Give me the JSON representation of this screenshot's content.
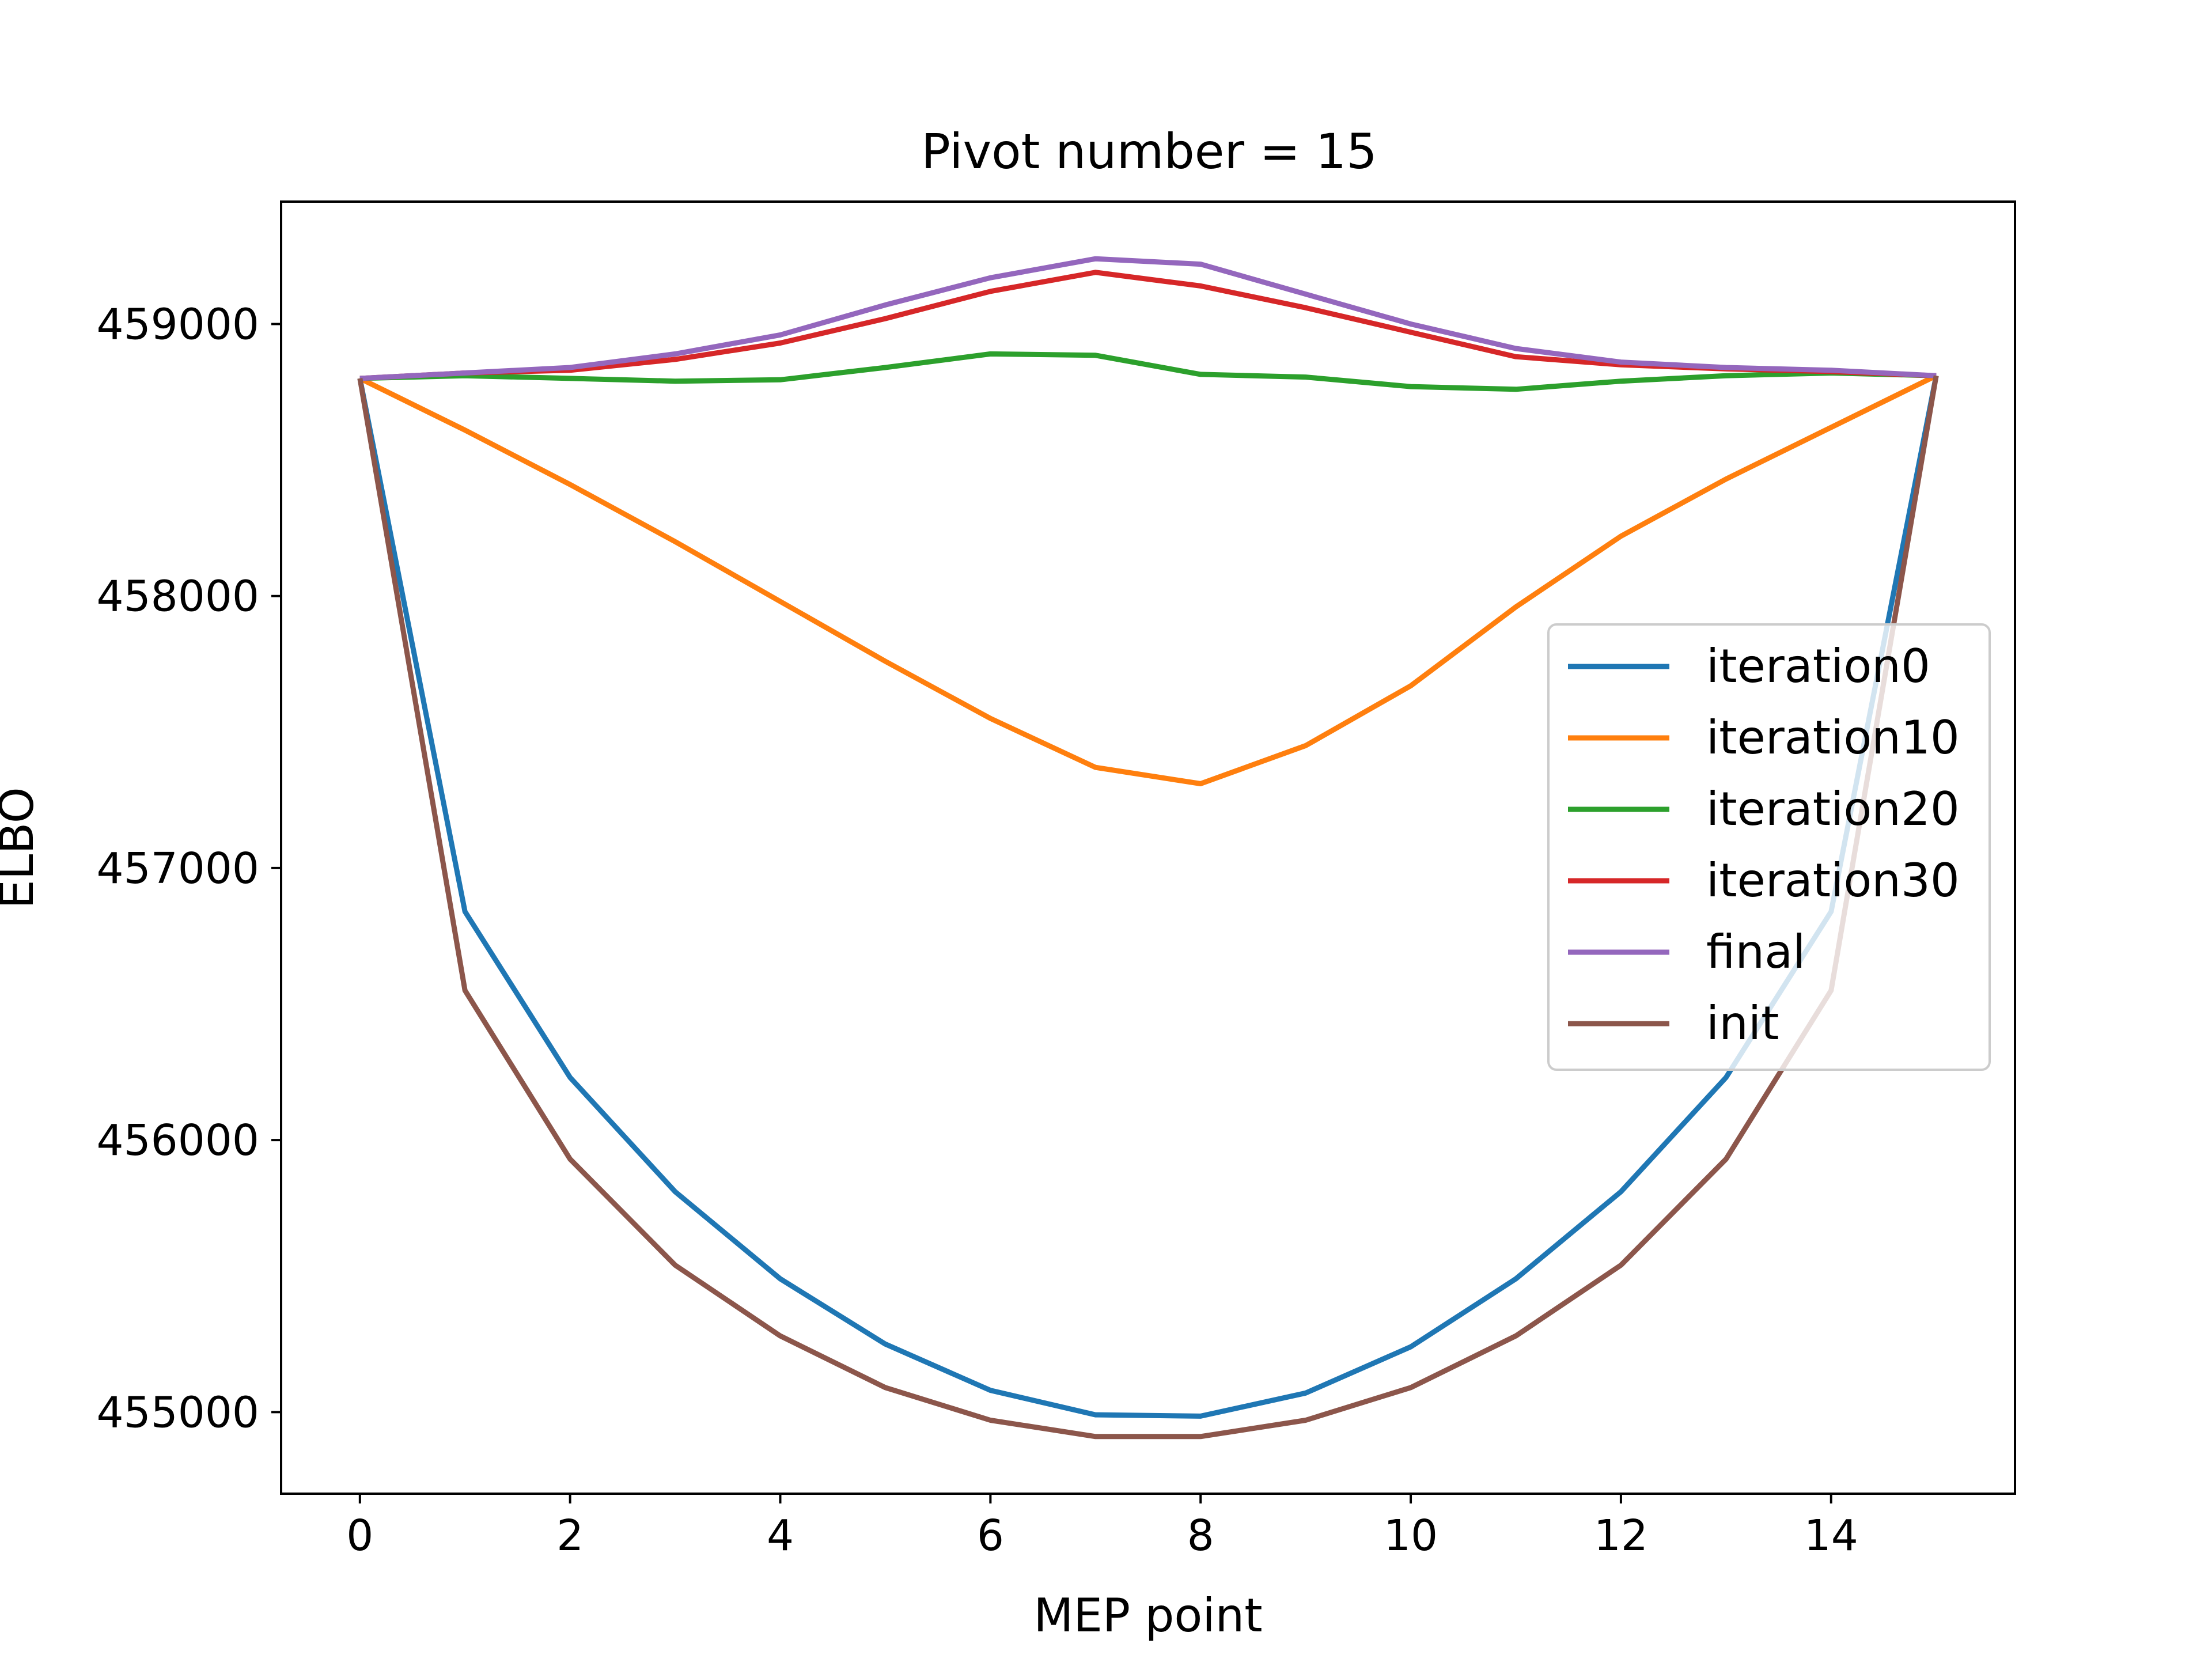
{
  "chart_data": {
    "type": "line",
    "title": "Pivot number = 15",
    "xlabel": "MEP point",
    "ylabel": "ELBO",
    "xlim": [
      -0.75,
      15.75
    ],
    "ylim": [
      454700,
      459450
    ],
    "xticks": [
      0,
      2,
      4,
      6,
      8,
      10,
      12,
      14
    ],
    "yticks": [
      455000,
      456000,
      457000,
      458000,
      459000
    ],
    "grid": false,
    "legend_position": "center-right",
    "x": [
      0,
      1,
      2,
      3,
      4,
      5,
      6,
      7,
      8,
      9,
      10,
      11,
      12,
      13,
      14,
      15
    ],
    "series": [
      {
        "name": "iteration0",
        "color": "#1f77b4",
        "values": [
          458800,
          456840,
          456230,
          455810,
          455490,
          455250,
          455080,
          454990,
          454985,
          455070,
          455240,
          455490,
          455810,
          456230,
          456840,
          458810
        ]
      },
      {
        "name": "iteration10",
        "color": "#ff7f0e",
        "values": [
          458800,
          458610,
          458410,
          458200,
          457980,
          457760,
          457550,
          457370,
          457310,
          457450,
          457670,
          457960,
          458220,
          458430,
          458620,
          458810
        ]
      },
      {
        "name": "iteration20",
        "color": "#2ca02c",
        "values": [
          458800,
          458810,
          458800,
          458790,
          458795,
          458840,
          458890,
          458885,
          458815,
          458805,
          458770,
          458760,
          458790,
          458810,
          458820,
          458810
        ]
      },
      {
        "name": "iteration30",
        "color": "#d62728",
        "values": [
          458800,
          458820,
          458830,
          458870,
          458930,
          459020,
          459120,
          459190,
          459140,
          459060,
          458970,
          458880,
          458850,
          458835,
          458825,
          458810
        ]
      },
      {
        "name": "final",
        "color": "#9467bd",
        "values": [
          458800,
          458820,
          458840,
          458890,
          458960,
          459070,
          459170,
          459240,
          459220,
          459110,
          459000,
          458910,
          458860,
          458840,
          458830,
          458810
        ]
      },
      {
        "name": "init",
        "color": "#8c564b",
        "values": [
          458800,
          456550,
          455930,
          455540,
          455280,
          455090,
          454970,
          454910,
          454910,
          454970,
          455090,
          455280,
          455540,
          455930,
          456550,
          458810
        ]
      }
    ]
  }
}
